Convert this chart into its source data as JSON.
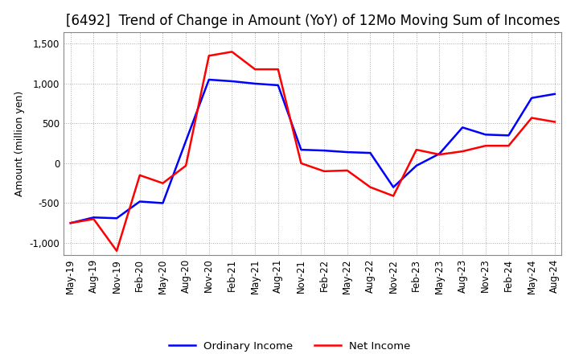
{
  "title": "[6492]  Trend of Change in Amount (YoY) of 12Mo Moving Sum of Incomes",
  "ylabel": "Amount (million yen)",
  "ylim": [
    -1150,
    1650
  ],
  "yticks": [
    -1000,
    -500,
    0,
    500,
    1000,
    1500
  ],
  "legend_labels": [
    "Ordinary Income",
    "Net Income"
  ],
  "line_colors": [
    "#0000ff",
    "#ff0000"
  ],
  "x_labels": [
    "May-19",
    "Aug-19",
    "Nov-19",
    "Feb-20",
    "May-20",
    "Aug-20",
    "Nov-20",
    "Feb-21",
    "May-21",
    "Aug-21",
    "Nov-21",
    "Feb-22",
    "May-22",
    "Aug-22",
    "Nov-22",
    "Feb-23",
    "May-23",
    "Aug-23",
    "Nov-23",
    "Feb-24",
    "May-24",
    "Aug-24"
  ],
  "ordinary_income": [
    -750,
    -680,
    -690,
    -480,
    -500,
    280,
    1050,
    1030,
    1000,
    980,
    170,
    160,
    140,
    130,
    -300,
    -30,
    120,
    450,
    360,
    350,
    820,
    870
  ],
  "net_income": [
    -750,
    -700,
    -1100,
    -150,
    -250,
    -30,
    1350,
    1400,
    1180,
    1180,
    0,
    -100,
    -90,
    -300,
    -410,
    170,
    110,
    150,
    220,
    220,
    570,
    520
  ],
  "background_color": "#ffffff",
  "grid_color": "#aaaaaa",
  "title_fontsize": 12,
  "axis_fontsize": 9,
  "tick_fontsize": 8.5,
  "legend_fontsize": 9.5,
  "linewidth": 1.8
}
